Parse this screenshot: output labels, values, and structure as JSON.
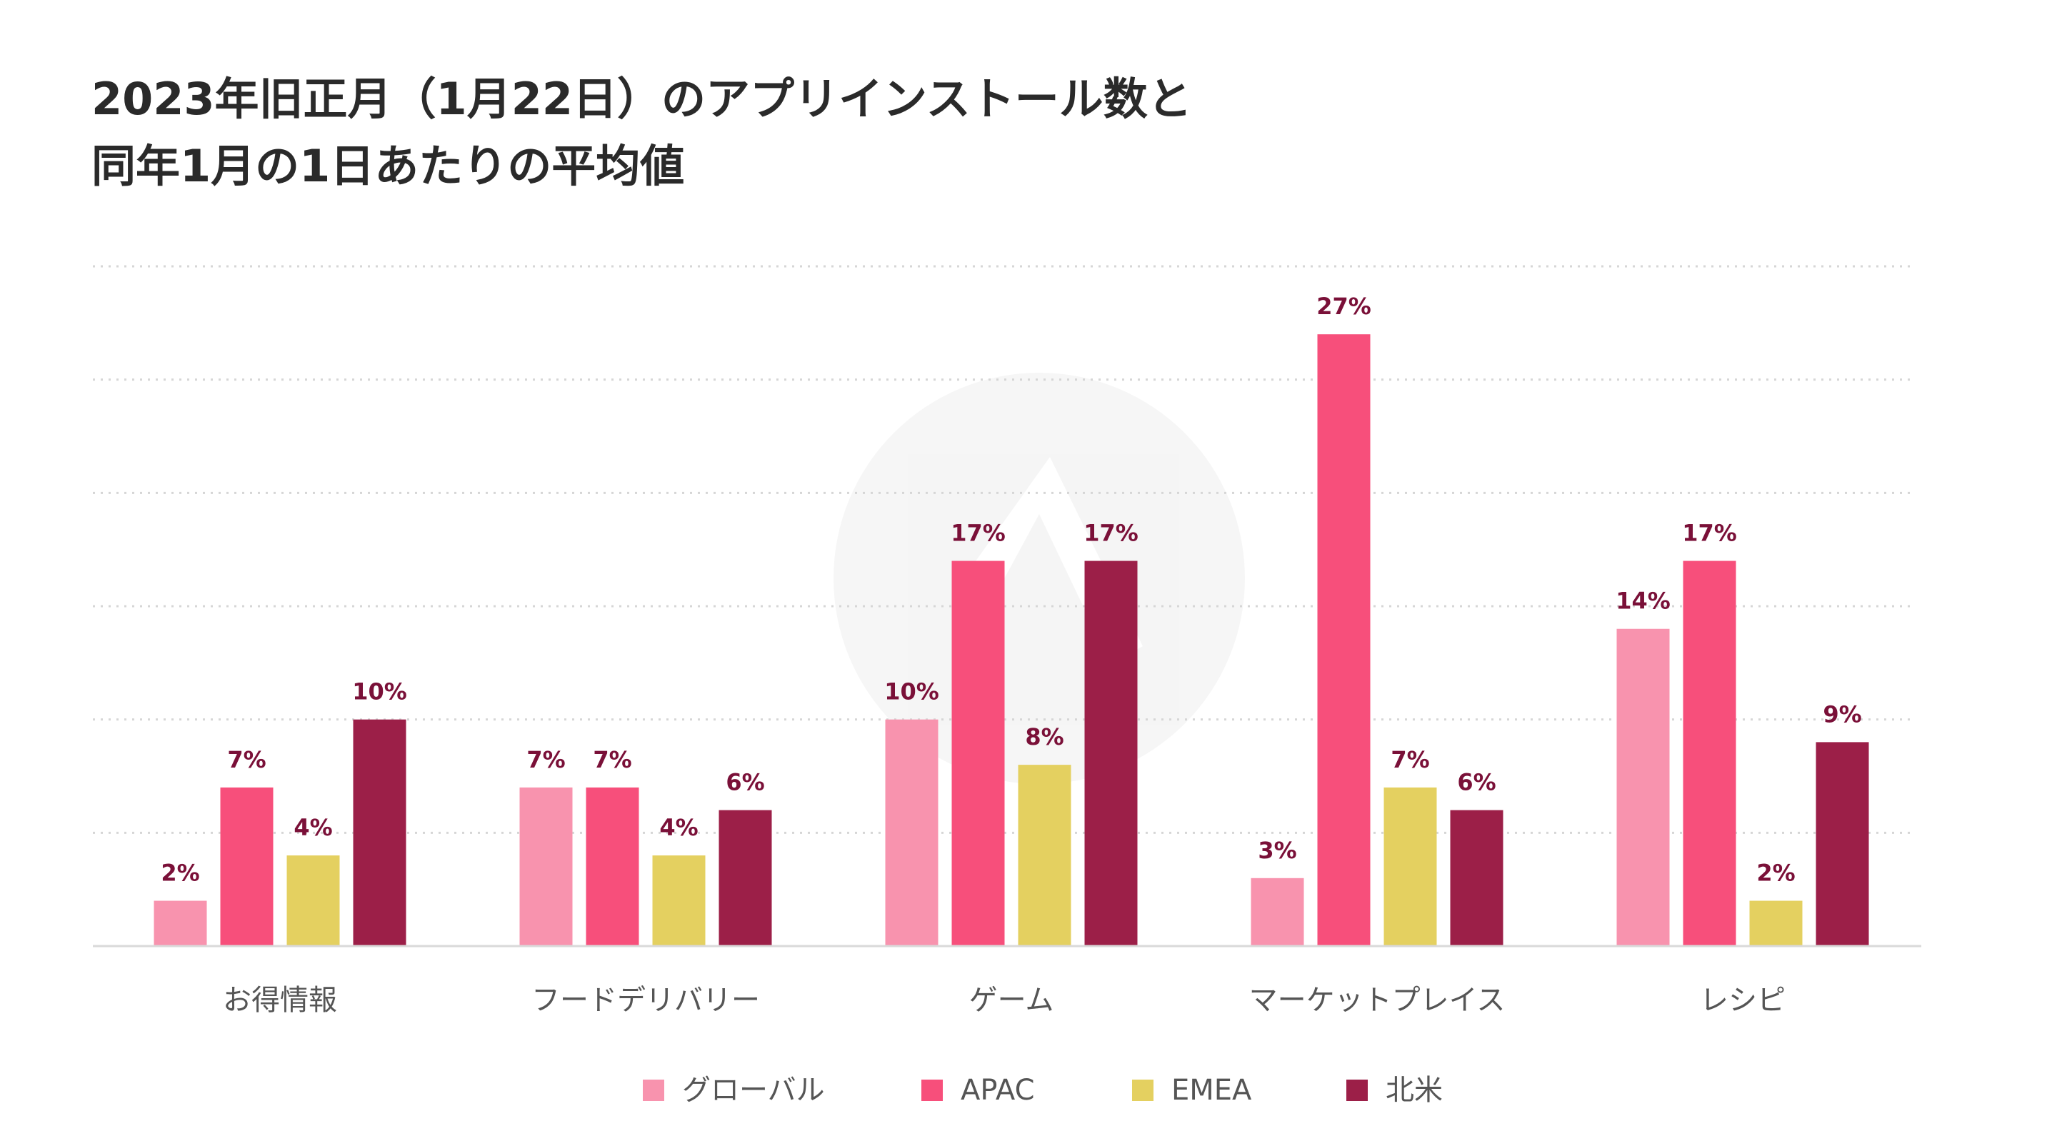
{
  "title_lines": [
    "2023年旧正月（1月22日）のアプリインストール数と",
    "同年1月の1日あたりの平均値"
  ],
  "chart_data": {
    "type": "bar",
    "categories": [
      "お得情報",
      "フードデリバリー",
      "ゲーム",
      "マーケットプレイス",
      "レシピ"
    ],
    "series": [
      {
        "name": "グローバル",
        "color": "#f893ae",
        "values": [
          2,
          7,
          10,
          3,
          14
        ],
        "labels": [
          "2%",
          "7%",
          "10%",
          "3%",
          "14%"
        ]
      },
      {
        "name": "APAC",
        "color": "#f74f7b",
        "values": [
          7,
          7,
          17,
          27,
          17
        ],
        "labels": [
          "7%",
          "7%",
          "17%",
          "27%",
          "17%"
        ]
      },
      {
        "name": "EMEA",
        "color": "#e4d060",
        "values": [
          4,
          4,
          8,
          7,
          2
        ],
        "labels": [
          "4%",
          "4%",
          "8%",
          "7%",
          "2%"
        ]
      },
      {
        "name": "北米",
        "color": "#9c1f48",
        "values": [
          10,
          6,
          17,
          6,
          9
        ],
        "labels": [
          "10%",
          "6%",
          "17%",
          "6%",
          "9%"
        ]
      }
    ],
    "ylim": [
      0,
      30
    ],
    "grid": true,
    "legend": "bottom",
    "data_label_color": "#7a1038"
  }
}
